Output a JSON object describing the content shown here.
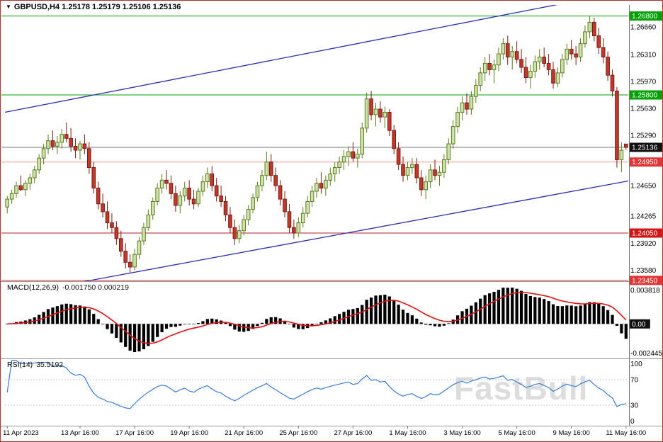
{
  "window": {
    "symbol_title": "GBPUSD,H4",
    "ohlc_line": "1.25178 1.25179 1.25106 1.25136",
    "watermark": "FastBull"
  },
  "macd_panel": {
    "label": "MACD(12,26,9)",
    "values": "-0.001750 0.000219",
    "axis_top": "0.003818",
    "axis_zero": "0.00",
    "axis_bottom": "-0.002445"
  },
  "rsi_panel": {
    "label": "RSI(14)",
    "value": "35.5192",
    "axis": [
      "100",
      "70",
      "30",
      "0"
    ]
  },
  "price_axis": {
    "plain": [
      {
        "text": "1.26660",
        "price": 1.2666
      },
      {
        "text": "1.26310",
        "price": 1.2631
      },
      {
        "text": "1.25970",
        "price": 1.2597
      },
      {
        "text": "1.25630",
        "price": 1.2563
      },
      {
        "text": "1.25290",
        "price": 1.2529
      },
      {
        "text": "1.24650",
        "price": 1.2465
      },
      {
        "text": "1.24265",
        "price": 1.24265
      },
      {
        "text": "1.23920",
        "price": 1.2392
      },
      {
        "text": "1.23580",
        "price": 1.2358
      }
    ],
    "badges": [
      {
        "text": "1.26800",
        "price": 1.268,
        "bg": "#00a000"
      },
      {
        "text": "1.25800",
        "price": 1.258,
        "bg": "#00a000"
      },
      {
        "text": "1.25136",
        "price": 1.25136,
        "bg": "#101010"
      },
      {
        "text": "1.24950",
        "price": 1.2495,
        "bg": "#e03535"
      },
      {
        "text": "1.24050",
        "price": 1.2405,
        "bg": "#d01515"
      },
      {
        "text": "1.23450",
        "price": 1.2345,
        "bg": "#e03535"
      }
    ]
  },
  "time_axis": {
    "labels": [
      {
        "text": "11 Apr 2023",
        "index": 0
      },
      {
        "text": "13 Apr 16:00",
        "index": 16
      },
      {
        "text": "17 Apr 16:00",
        "index": 28
      },
      {
        "text": "19 Apr 16:00",
        "index": 40
      },
      {
        "text": "21 Apr 16:00",
        "index": 52
      },
      {
        "text": "25 Apr 16:00",
        "index": 64
      },
      {
        "text": "27 Apr 16:00",
        "index": 76
      },
      {
        "text": "1 May 16:00",
        "index": 88
      },
      {
        "text": "3 May 16:00",
        "index": 100
      },
      {
        "text": "5 May 16:00",
        "index": 112
      },
      {
        "text": "9 May 16:00",
        "index": 124
      },
      {
        "text": "11 May 16:00",
        "index": 136
      }
    ]
  },
  "chart_data": {
    "type": "candlestick",
    "symbol": "GBPUSD",
    "timeframe": "H4",
    "title": "GBPUSD,H4 1.25178 1.25179 1.25106 1.25136",
    "price_range": [
      1.2344,
      1.2694
    ],
    "current_price": {
      "value": 1.25136,
      "line_color": "#7a7a7a"
    },
    "levels": [
      {
        "price": 1.268,
        "color": "#00a000"
      },
      {
        "price": 1.258,
        "color": "#00a000"
      },
      {
        "price": 1.2495,
        "color": "#ff9090"
      },
      {
        "price": 1.2405,
        "color": "#b22222"
      },
      {
        "price": 1.2345,
        "color": "#e03535"
      }
    ],
    "trendlines": [
      {
        "i1": 0,
        "p1": 1.2558,
        "i2": 137,
        "p2": 1.2712,
        "color": "#2a2ab8"
      },
      {
        "i1": 0,
        "p1": 1.2325,
        "i2": 137,
        "p2": 1.2471,
        "color": "#2a2ab8"
      }
    ],
    "candle_colors": {
      "up_fill": "#cfe2a8",
      "up_stroke": "#5a7a1e",
      "down_fill": "#c0392b",
      "down_stroke": "#7b1a12"
    },
    "macd": {
      "fast": 12,
      "slow": 26,
      "signal": 9,
      "histogram_color": "#000000",
      "signal_color": "#e01010",
      "last_macd": -0.00175,
      "last_signal": 0.000219
    },
    "rsi": {
      "period": 14,
      "color": "#3a7bd5",
      "last_value": 35.5192,
      "levels": [
        70,
        30
      ]
    },
    "ohlc": [
      [
        1.2438,
        1.2452,
        1.243,
        1.2448
      ],
      [
        1.2448,
        1.246,
        1.2442,
        1.2455
      ],
      [
        1.2455,
        1.247,
        1.245,
        1.2465
      ],
      [
        1.2465,
        1.2478,
        1.2458,
        1.246
      ],
      [
        1.246,
        1.2472,
        1.2452,
        1.2468
      ],
      [
        1.2468,
        1.248,
        1.246,
        1.2475
      ],
      [
        1.2475,
        1.249,
        1.2468,
        1.2485
      ],
      [
        1.2485,
        1.2505,
        1.248,
        1.25
      ],
      [
        1.25,
        1.2518,
        1.2492,
        1.2512
      ],
      [
        1.2512,
        1.253,
        1.2505,
        1.2522
      ],
      [
        1.2522,
        1.2535,
        1.251,
        1.2515
      ],
      [
        1.2515,
        1.2528,
        1.2505,
        1.252
      ],
      [
        1.252,
        1.2537,
        1.2512,
        1.253
      ],
      [
        1.253,
        1.2545,
        1.252,
        1.2525
      ],
      [
        1.2525,
        1.2538,
        1.2508,
        1.2515
      ],
      [
        1.2515,
        1.2525,
        1.25,
        1.251
      ],
      [
        1.251,
        1.2522,
        1.2498,
        1.2518
      ],
      [
        1.2518,
        1.253,
        1.2505,
        1.2512
      ],
      [
        1.2512,
        1.252,
        1.248,
        1.2488
      ],
      [
        1.2488,
        1.2495,
        1.2455,
        1.2462
      ],
      [
        1.2462,
        1.247,
        1.2435,
        1.2442
      ],
      [
        1.2442,
        1.2455,
        1.2425,
        1.2432
      ],
      [
        1.2432,
        1.2445,
        1.241,
        1.2418
      ],
      [
        1.2418,
        1.243,
        1.2405,
        1.2412
      ],
      [
        1.2412,
        1.242,
        1.239,
        1.2398
      ],
      [
        1.2398,
        1.2408,
        1.2375,
        1.2382
      ],
      [
        1.2382,
        1.2392,
        1.236,
        1.2368
      ],
      [
        1.2368,
        1.2378,
        1.2355,
        1.2362
      ],
      [
        1.2362,
        1.2385,
        1.2358,
        1.2378
      ],
      [
        1.2378,
        1.24,
        1.2372,
        1.2395
      ],
      [
        1.2395,
        1.2418,
        1.239,
        1.2412
      ],
      [
        1.2412,
        1.2435,
        1.2408,
        1.2428
      ],
      [
        1.2428,
        1.245,
        1.2422,
        1.2445
      ],
      [
        1.2445,
        1.2468,
        1.244,
        1.2462
      ],
      [
        1.2462,
        1.248,
        1.2455,
        1.2472
      ],
      [
        1.2472,
        1.2485,
        1.246,
        1.2468
      ],
      [
        1.2468,
        1.2478,
        1.2448,
        1.2455
      ],
      [
        1.2455,
        1.2465,
        1.2432,
        1.244
      ],
      [
        1.244,
        1.2458,
        1.243,
        1.2452
      ],
      [
        1.2452,
        1.247,
        1.2445,
        1.2462
      ],
      [
        1.2462,
        1.2472,
        1.244,
        1.2448
      ],
      [
        1.2448,
        1.246,
        1.2435,
        1.2442
      ],
      [
        1.2442,
        1.2462,
        1.2438,
        1.2458
      ],
      [
        1.2458,
        1.2478,
        1.2452,
        1.247
      ],
      [
        1.247,
        1.2488,
        1.2462,
        1.248
      ],
      [
        1.248,
        1.249,
        1.2458,
        1.2465
      ],
      [
        1.2465,
        1.2475,
        1.2445,
        1.2452
      ],
      [
        1.2452,
        1.2465,
        1.2438,
        1.2445
      ],
      [
        1.2445,
        1.2452,
        1.242,
        1.2428
      ],
      [
        1.2428,
        1.2438,
        1.2405,
        1.2412
      ],
      [
        1.2412,
        1.2422,
        1.239,
        1.2398
      ],
      [
        1.2398,
        1.2415,
        1.2392,
        1.2408
      ],
      [
        1.2408,
        1.2428,
        1.2402,
        1.2422
      ],
      [
        1.2422,
        1.244,
        1.2415,
        1.2435
      ],
      [
        1.2435,
        1.2455,
        1.243,
        1.245
      ],
      [
        1.245,
        1.247,
        1.2445,
        1.2465
      ],
      [
        1.2465,
        1.2485,
        1.2458,
        1.2478
      ],
      [
        1.2478,
        1.2508,
        1.2472,
        1.2495
      ],
      [
        1.2495,
        1.2505,
        1.247,
        1.2478
      ],
      [
        1.2478,
        1.2488,
        1.2458,
        1.2465
      ],
      [
        1.2465,
        1.2472,
        1.244,
        1.2448
      ],
      [
        1.2448,
        1.2458,
        1.2425,
        1.2432
      ],
      [
        1.2432,
        1.2442,
        1.2405,
        1.2412
      ],
      [
        1.2412,
        1.2422,
        1.2398,
        1.2405
      ],
      [
        1.2405,
        1.2425,
        1.24,
        1.2418
      ],
      [
        1.2418,
        1.2438,
        1.2412,
        1.243
      ],
      [
        1.243,
        1.2452,
        1.2425,
        1.2445
      ],
      [
        1.2445,
        1.2465,
        1.2438,
        1.2458
      ],
      [
        1.2458,
        1.2475,
        1.245,
        1.2468
      ],
      [
        1.2468,
        1.2482,
        1.2455,
        1.2462
      ],
      [
        1.2462,
        1.2478,
        1.2452,
        1.2472
      ],
      [
        1.2472,
        1.2488,
        1.2465,
        1.248
      ],
      [
        1.248,
        1.2495,
        1.247,
        1.2488
      ],
      [
        1.2488,
        1.2502,
        1.248,
        1.2495
      ],
      [
        1.2495,
        1.251,
        1.2485,
        1.2502
      ],
      [
        1.2502,
        1.2515,
        1.249,
        1.2508
      ],
      [
        1.2508,
        1.252,
        1.2495,
        1.25
      ],
      [
        1.25,
        1.2512,
        1.2488,
        1.2505
      ],
      [
        1.2505,
        1.2545,
        1.25,
        1.2538
      ],
      [
        1.2538,
        1.2583,
        1.2532,
        1.2575
      ],
      [
        1.2575,
        1.2585,
        1.2548,
        1.2555
      ],
      [
        1.2555,
        1.257,
        1.254,
        1.2562
      ],
      [
        1.2562,
        1.2572,
        1.2545,
        1.2552
      ],
      [
        1.2552,
        1.2565,
        1.2538,
        1.2558
      ],
      [
        1.2558,
        1.2562,
        1.2528,
        1.2535
      ],
      [
        1.2535,
        1.2542,
        1.2505,
        1.2512
      ],
      [
        1.2512,
        1.252,
        1.2485,
        1.2492
      ],
      [
        1.2492,
        1.2502,
        1.247,
        1.2478
      ],
      [
        1.2478,
        1.2495,
        1.2472,
        1.2488
      ],
      [
        1.2488,
        1.25,
        1.248,
        1.2492
      ],
      [
        1.2492,
        1.25,
        1.2468,
        1.2475
      ],
      [
        1.2475,
        1.2485,
        1.2452,
        1.246
      ],
      [
        1.246,
        1.2478,
        1.2448,
        1.247
      ],
      [
        1.247,
        1.2492,
        1.2462,
        1.2485
      ],
      [
        1.2485,
        1.2498,
        1.2472,
        1.2478
      ],
      [
        1.2478,
        1.249,
        1.2465,
        1.2482
      ],
      [
        1.2482,
        1.2505,
        1.2475,
        1.2498
      ],
      [
        1.2498,
        1.2525,
        1.2492,
        1.2518
      ],
      [
        1.2518,
        1.2548,
        1.2512,
        1.254
      ],
      [
        1.254,
        1.2565,
        1.2532,
        1.2558
      ],
      [
        1.2558,
        1.2578,
        1.2548,
        1.257
      ],
      [
        1.257,
        1.2582,
        1.2555,
        1.2562
      ],
      [
        1.2562,
        1.2585,
        1.2555,
        1.2578
      ],
      [
        1.2578,
        1.26,
        1.257,
        1.2592
      ],
      [
        1.2592,
        1.2615,
        1.2585,
        1.2608
      ],
      [
        1.2608,
        1.2628,
        1.2598,
        1.262
      ],
      [
        1.262,
        1.2632,
        1.2605,
        1.2612
      ],
      [
        1.2612,
        1.2625,
        1.2595,
        1.2618
      ],
      [
        1.2618,
        1.264,
        1.261,
        1.2632
      ],
      [
        1.2632,
        1.2652,
        1.2625,
        1.2645
      ],
      [
        1.2645,
        1.2655,
        1.2618,
        1.2628
      ],
      [
        1.2628,
        1.2642,
        1.2612,
        1.2635
      ],
      [
        1.2635,
        1.2648,
        1.262,
        1.2625
      ],
      [
        1.2625,
        1.2638,
        1.2608,
        1.2615
      ],
      [
        1.2615,
        1.2628,
        1.2595,
        1.2602
      ],
      [
        1.2602,
        1.2618,
        1.2588,
        1.261
      ],
      [
        1.261,
        1.263,
        1.2602,
        1.2622
      ],
      [
        1.2622,
        1.2638,
        1.2612,
        1.2628
      ],
      [
        1.2628,
        1.264,
        1.2615,
        1.262
      ],
      [
        1.262,
        1.2632,
        1.2605,
        1.2612
      ],
      [
        1.2612,
        1.2622,
        1.2588,
        1.2595
      ],
      [
        1.2595,
        1.2615,
        1.259,
        1.2608
      ],
      [
        1.2608,
        1.2632,
        1.2602,
        1.2625
      ],
      [
        1.2625,
        1.2645,
        1.2618,
        1.2638
      ],
      [
        1.2638,
        1.265,
        1.2625,
        1.2632
      ],
      [
        1.2632,
        1.2642,
        1.2618,
        1.2628
      ],
      [
        1.2628,
        1.2652,
        1.2622,
        1.2645
      ],
      [
        1.2645,
        1.2668,
        1.264,
        1.266
      ],
      [
        1.266,
        1.268,
        1.2652,
        1.2672
      ],
      [
        1.2672,
        1.2678,
        1.2648,
        1.2655
      ],
      [
        1.2655,
        1.2665,
        1.2632,
        1.264
      ],
      [
        1.264,
        1.2652,
        1.262,
        1.2628
      ],
      [
        1.2628,
        1.2635,
        1.2598,
        1.2605
      ],
      [
        1.2605,
        1.2612,
        1.2578,
        1.2585
      ],
      [
        1.2585,
        1.259,
        1.2488,
        1.2498
      ],
      [
        1.2498,
        1.252,
        1.2482,
        1.251
      ],
      [
        1.25178,
        1.25179,
        1.25106,
        1.25136
      ]
    ]
  }
}
